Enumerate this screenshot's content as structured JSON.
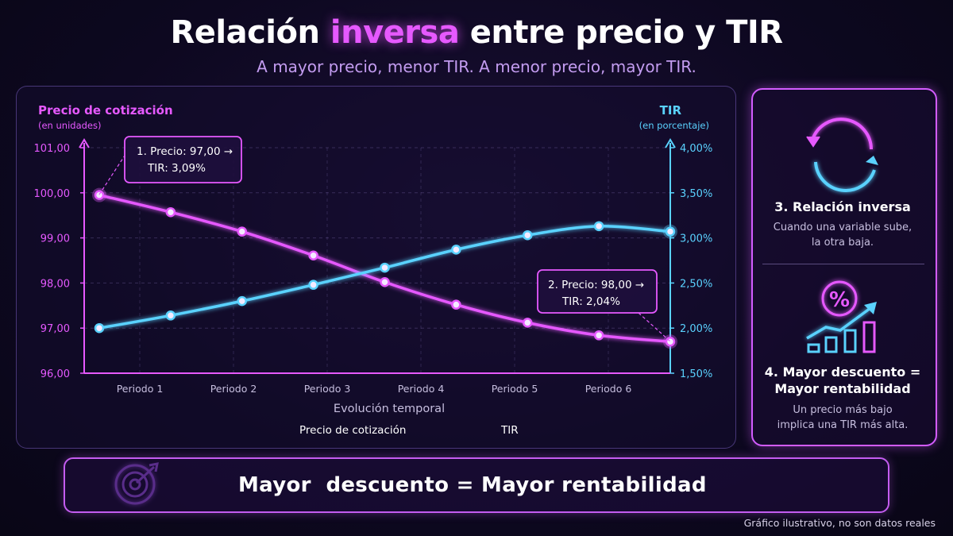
{
  "header": {
    "title_pre": "Relación ",
    "title_hl": "inversa",
    "title_post": " entre precio y TIR",
    "subtitle": "A mayor precio, menor TIR. A menor precio, mayor TIR."
  },
  "chart_data": {
    "type": "line",
    "categories": [
      "Periodo 1",
      "Periodo 2",
      "Periodo 3",
      "Periodo 4",
      "Periodo 5",
      "Periodo 6"
    ],
    "xlabel": "Evolución temporal",
    "y_left": {
      "label": "Precio de cotización",
      "sublabel": "(en unidades)",
      "ticks": [
        "96,00",
        "97,00",
        "98,00",
        "99,00",
        "100,00",
        "101,00"
      ],
      "range": [
        96,
        101
      ]
    },
    "y_right": {
      "label": "TIR",
      "sublabel": "(en porcentaje)",
      "ticks": [
        "1,50%",
        "2,00%",
        "2,50%",
        "3,00%",
        "3,50%",
        "4,00%"
      ],
      "range": [
        1.5,
        4.0
      ]
    },
    "x": [
      0,
      1,
      2,
      3,
      4,
      5,
      6,
      7,
      8
    ],
    "series": [
      {
        "name": "Precio de cotización",
        "axis": "left",
        "color": "#e659ff",
        "values": [
          99.95,
          99.57,
          99.14,
          98.61,
          98.02,
          97.52,
          97.12,
          96.84,
          96.7
        ]
      },
      {
        "name": "TIR",
        "axis": "right",
        "color": "#5ad2ff",
        "values": [
          2.0,
          2.14,
          2.3,
          2.48,
          2.67,
          2.87,
          3.03,
          3.13,
          3.07
        ]
      }
    ],
    "annotations": [
      {
        "line1": "1. Precio: 97,00 →",
        "line2": "TIR: 3,09%"
      },
      {
        "line1": "2. Precio: 98,00 →",
        "line2": "TIR: 2,04%"
      }
    ],
    "legend_position": "bottom",
    "grid": true
  },
  "side": {
    "item3_title": "3. Relación inversa",
    "item3_text1": "Cuando una variable sube,",
    "item3_text2": "la otra baja.",
    "item4_title1": "4. Mayor descuento =",
    "item4_title2": "Mayor rentabilidad",
    "item4_text1": "Un precio más bajo",
    "item4_text2": "implica una TIR más alta.",
    "percent_symbol": "%"
  },
  "banner": {
    "text": "Mayor  descuento = Mayor rentabilidad"
  },
  "footnote": "Gráfico ilustrativo, no son datos reales",
  "colors": {
    "accent": "#e659ff",
    "secondary": "#5ad2ff",
    "background": "#0d0820"
  }
}
